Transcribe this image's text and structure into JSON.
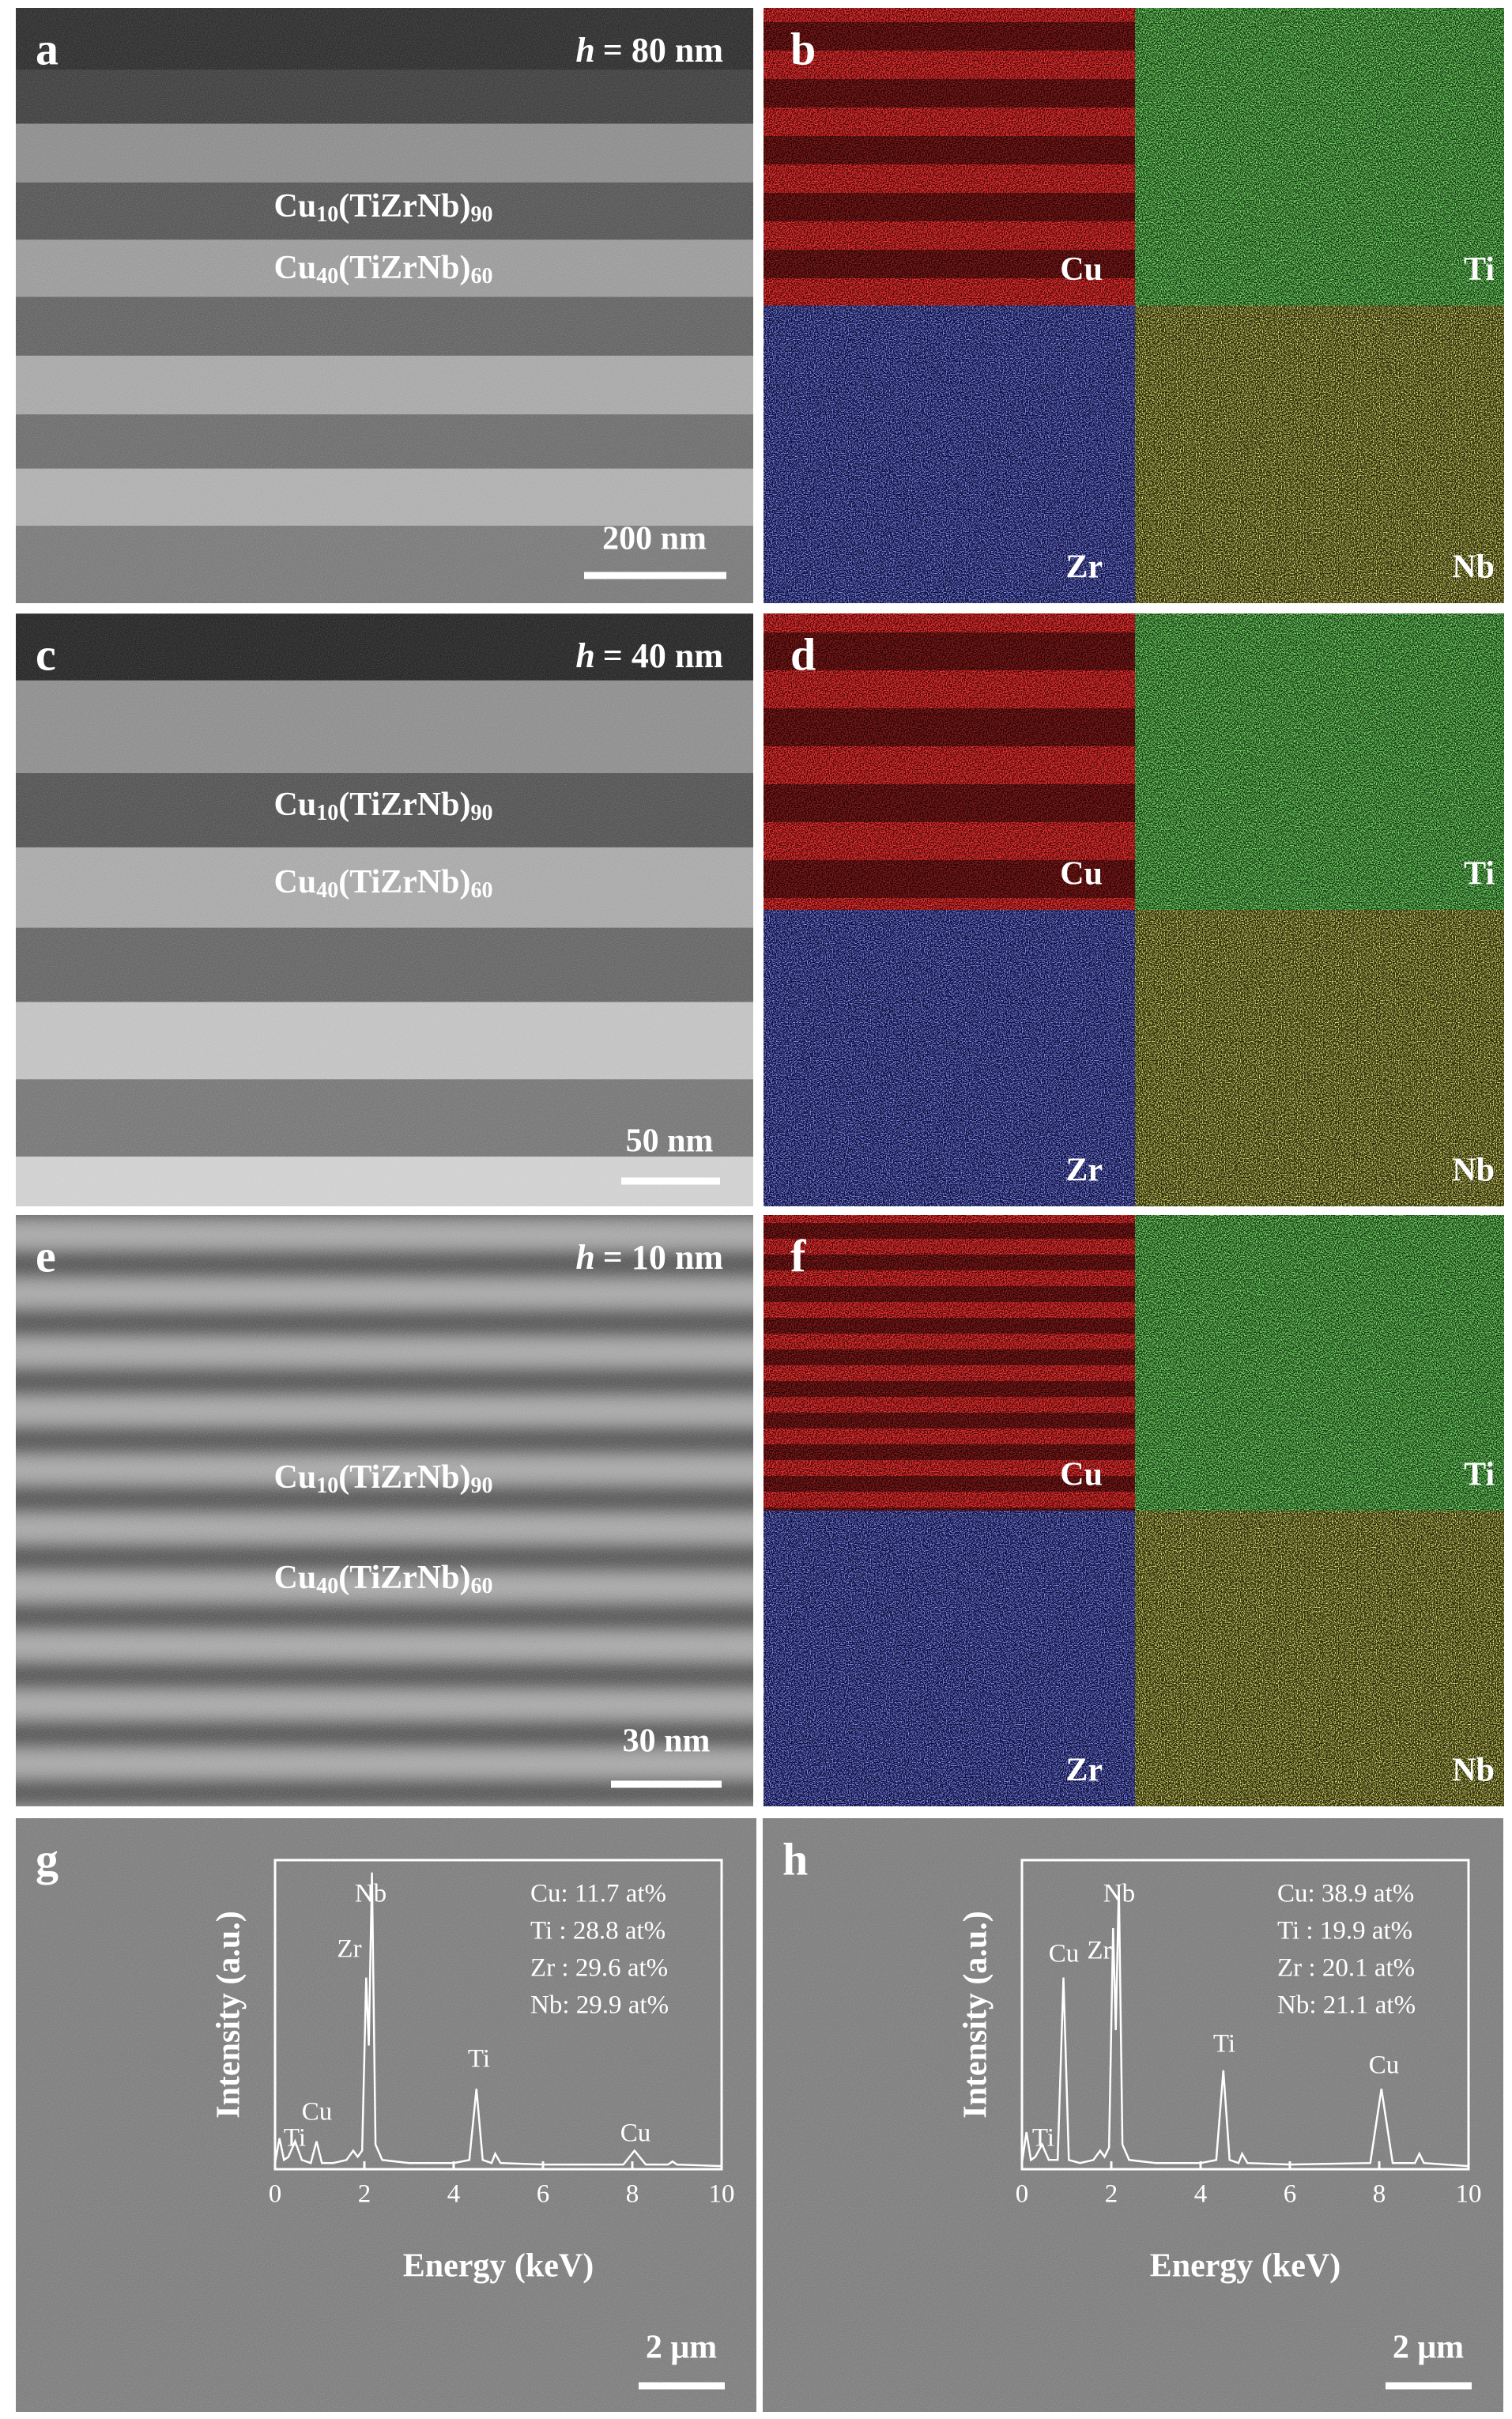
{
  "panels": [
    {
      "label": "a",
      "thickness": {
        "symbol": "h",
        "rest": "= 80 nm"
      },
      "layers": [
        {
          "base": "Cu",
          "sub1": "10",
          "mid": "(TiZrNb)",
          "sub2": "90"
        },
        {
          "base": "Cu",
          "sub1": "40",
          "mid": "(TiZrNb)",
          "sub2": "60"
        }
      ],
      "scale_bar": "200 nm"
    },
    {
      "label": "c",
      "thickness": {
        "symbol": "h",
        "rest": "= 40 nm"
      },
      "layers": [
        {
          "base": "Cu",
          "sub1": "10",
          "mid": "(TiZrNb)",
          "sub2": "90"
        },
        {
          "base": "Cu",
          "sub1": "40",
          "mid": "(TiZrNb)",
          "sub2": "60"
        }
      ],
      "scale_bar": "50 nm"
    },
    {
      "label": "e",
      "thickness": {
        "symbol": "h",
        "rest": "= 10 nm"
      },
      "layers": [
        {
          "base": "Cu",
          "sub1": "10",
          "mid": "(TiZrNb)",
          "sub2": "90"
        },
        {
          "base": "Cu",
          "sub1": "40",
          "mid": "(TiZrNb)",
          "sub2": "60"
        }
      ],
      "scale_bar": "30 nm"
    }
  ],
  "maps": [
    {
      "label": "b",
      "elements": [
        "Cu",
        "Ti",
        "Zr",
        "Nb"
      ]
    },
    {
      "label": "d",
      "elements": [
        "Cu",
        "Ti",
        "Zr",
        "Nb"
      ]
    },
    {
      "label": "f",
      "elements": [
        "Cu",
        "Ti",
        "Zr",
        "Nb"
      ]
    }
  ],
  "chart_data": [
    {
      "type": "line",
      "panel_label": "g",
      "x_label": "Energy (keV)",
      "y_label": "Intensity (a.u.)",
      "color": "#ffffff",
      "x": [
        0,
        0.1,
        0.2,
        0.3,
        0.45,
        0.6,
        0.8,
        0.93,
        1.05,
        1.3,
        1.6,
        1.75,
        1.85,
        1.95,
        2.04,
        2.1,
        2.17,
        2.25,
        2.4,
        3,
        4,
        4.35,
        4.51,
        4.65,
        4.85,
        4.93,
        5.05,
        6,
        7.8,
        8.05,
        8.3,
        8.8,
        8.9,
        9,
        10
      ],
      "values": [
        2,
        10,
        3,
        4,
        9,
        3,
        2,
        9,
        2,
        2,
        3,
        6,
        4,
        6,
        62,
        40,
        96,
        8,
        3,
        2,
        2,
        3,
        26,
        3,
        2,
        5,
        2,
        1.5,
        1.5,
        6,
        1.5,
        1.5,
        2.5,
        1.5,
        1
      ],
      "xlim": [
        0,
        10
      ],
      "xticks": [
        0,
        2,
        4,
        6,
        8,
        10
      ],
      "ylim": [
        0,
        100
      ],
      "annotations": [
        "Nb",
        "Zr",
        "Ti",
        "Cu",
        "Ti",
        "Cu"
      ],
      "composition": [
        "Cu: 11.7 at%",
        "Ti : 28.8 at%",
        "Zr : 29.6 at%",
        "Nb: 29.9 at%"
      ],
      "scale_bar": "2 μm"
    },
    {
      "type": "line",
      "panel_label": "h",
      "x_label": "Energy (keV)",
      "y_label": "Intensity (a.u.)",
      "color": "#ffffff",
      "x": [
        0,
        0.1,
        0.2,
        0.3,
        0.45,
        0.6,
        0.8,
        0.93,
        1.05,
        1.3,
        1.6,
        1.75,
        1.85,
        1.95,
        2.04,
        2.1,
        2.17,
        2.25,
        2.4,
        3,
        4,
        4.35,
        4.51,
        4.65,
        4.85,
        4.93,
        5.05,
        6,
        7.8,
        8.05,
        8.3,
        8.8,
        8.9,
        9,
        10
      ],
      "values": [
        2,
        12,
        3,
        4,
        8,
        3,
        3,
        62,
        3,
        2,
        3,
        6,
        4,
        7,
        78,
        45,
        92,
        8,
        3,
        2,
        2,
        3,
        32,
        3,
        2,
        5,
        2,
        1.5,
        2,
        26,
        2,
        2,
        5,
        2,
        1
      ],
      "xlim": [
        0,
        10
      ],
      "xticks": [
        0,
        2,
        4,
        6,
        8,
        10
      ],
      "ylim": [
        0,
        100
      ],
      "annotations": [
        "Nb",
        "Cu",
        "Zr",
        "Ti",
        "Cu",
        "Ti"
      ],
      "composition": [
        "Cu: 38.9 at%",
        "Ti : 19.9 at%",
        "Zr : 20.1 at%",
        "Nb: 21.1 at%"
      ],
      "scale_bar": "2 μm"
    }
  ]
}
